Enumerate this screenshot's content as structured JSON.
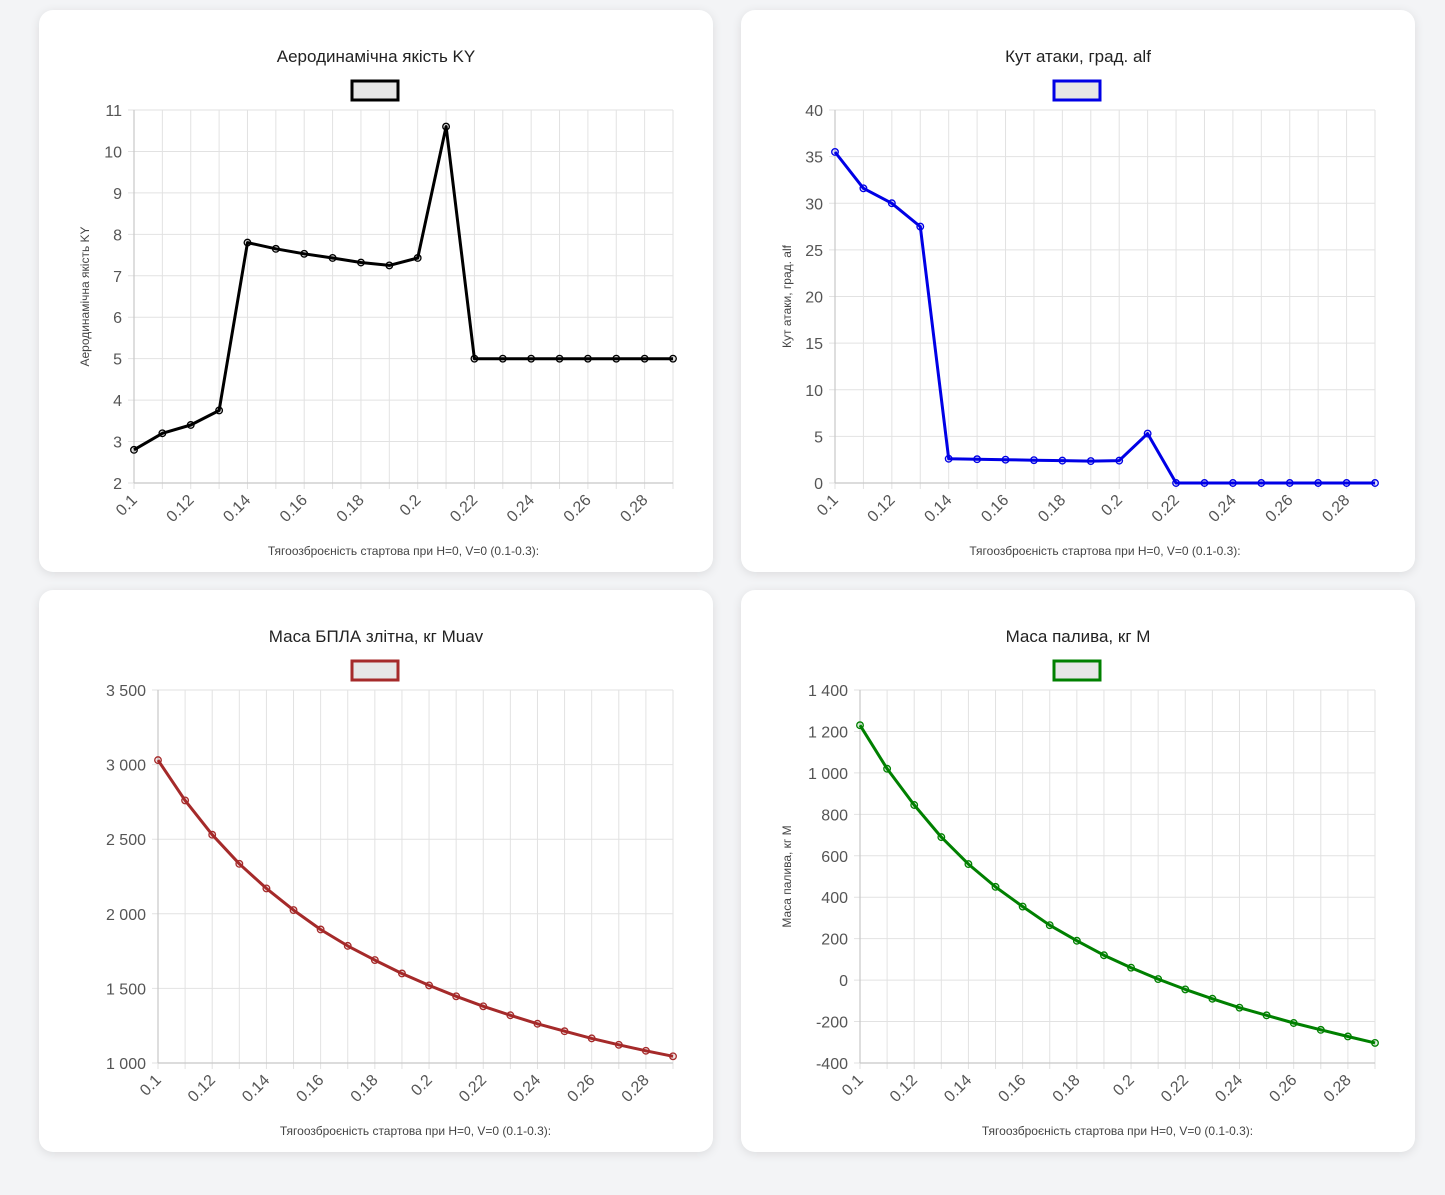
{
  "chart_data": [
    {
      "type": "line",
      "title": "Аеродинамічна якість KY",
      "legend": "",
      "color": "#000000",
      "xlabel": "Тягоозброєність стартова при H=0, V=0 (0.1-0.3):",
      "ylabel": "Аеродинамічна якість KY",
      "ylim": [
        2,
        11
      ],
      "yticks": [
        2,
        3,
        4,
        5,
        6,
        7,
        8,
        9,
        10,
        11
      ],
      "ytick_labels": [
        "2",
        "3",
        "4",
        "5",
        "6",
        "7",
        "8",
        "9",
        "10",
        "11"
      ],
      "x": [
        0.1,
        0.11,
        0.12,
        0.13,
        0.14,
        0.15,
        0.16,
        0.17,
        0.18,
        0.19,
        0.2,
        0.21,
        0.22,
        0.23,
        0.24,
        0.25,
        0.26,
        0.27,
        0.28,
        0.29
      ],
      "values": [
        2.8,
        3.2,
        3.4,
        3.75,
        7.8,
        7.65,
        7.53,
        7.43,
        7.32,
        7.25,
        7.43,
        10.6,
        5.0,
        5.0,
        5.0,
        5.0,
        5.0,
        5.0,
        5.0,
        5.0
      ],
      "xtick_labels": [
        "0.1",
        "0.12",
        "0.14",
        "0.16",
        "0.18",
        "0.2",
        "0.22",
        "0.24",
        "0.26",
        "0.28"
      ]
    },
    {
      "type": "line",
      "title": "Кут атаки, град. alf",
      "legend": "",
      "color": "#0000e6",
      "xlabel": "Тягоозброєність стартова при H=0, V=0 (0.1-0.3):",
      "ylabel": "Кут атаки, град. alf",
      "ylim": [
        0,
        40
      ],
      "yticks": [
        0,
        5,
        10,
        15,
        20,
        25,
        30,
        35,
        40
      ],
      "ytick_labels": [
        "0",
        "5",
        "10",
        "15",
        "20",
        "25",
        "30",
        "35",
        "40"
      ],
      "x": [
        0.1,
        0.11,
        0.12,
        0.13,
        0.14,
        0.15,
        0.16,
        0.17,
        0.18,
        0.19,
        0.2,
        0.21,
        0.22,
        0.23,
        0.24,
        0.25,
        0.26,
        0.27,
        0.28,
        0.29
      ],
      "values": [
        35.5,
        31.6,
        30.0,
        27.5,
        2.6,
        2.55,
        2.5,
        2.45,
        2.4,
        2.35,
        2.4,
        5.3,
        0,
        0,
        0,
        0,
        0,
        0,
        0,
        0
      ],
      "xtick_labels": [
        "0.1",
        "0.12",
        "0.14",
        "0.16",
        "0.18",
        "0.2",
        "0.22",
        "0.24",
        "0.26",
        "0.28"
      ]
    },
    {
      "type": "line",
      "title": "Маса БПЛА злітна, кг Muav",
      "legend": "",
      "color": "#a52a2a",
      "xlabel": "Тягоозброєність стартова при H=0, V=0 (0.1-0.3):",
      "ylabel": "",
      "ylim": [
        1000,
        3500
      ],
      "yticks": [
        1000,
        1500,
        2000,
        2500,
        3000,
        3500
      ],
      "ytick_labels": [
        "1 000",
        "1 500",
        "2 000",
        "2 500",
        "3 000",
        "3 500"
      ],
      "x": [
        0.1,
        0.11,
        0.12,
        0.13,
        0.14,
        0.15,
        0.16,
        0.17,
        0.18,
        0.19,
        0.2,
        0.21,
        0.22,
        0.23,
        0.24,
        0.25,
        0.26,
        0.27,
        0.28,
        0.29
      ],
      "values": [
        3030,
        2760,
        2530,
        2335,
        2170,
        2025,
        1895,
        1785,
        1690,
        1600,
        1520,
        1447,
        1380,
        1320,
        1263,
        1213,
        1165,
        1122,
        1082,
        1045
      ],
      "xtick_labels": [
        "0.1",
        "0.12",
        "0.14",
        "0.16",
        "0.18",
        "0.2",
        "0.22",
        "0.24",
        "0.26",
        "0.28"
      ]
    },
    {
      "type": "line",
      "title": "Маса палива, кг M",
      "legend": "",
      "color": "#008000",
      "xlabel": "Тягоозброєність стартова при H=0, V=0 (0.1-0.3):",
      "ylabel": "Маса палива, кг M",
      "ylim": [
        -400,
        1400
      ],
      "yticks": [
        -400,
        -200,
        0,
        200,
        400,
        600,
        800,
        1000,
        1200,
        1400
      ],
      "ytick_labels": [
        "-400",
        "-200",
        "0",
        "200",
        "400",
        "600",
        "800",
        "1 000",
        "1 200",
        "1 400"
      ],
      "x": [
        0.1,
        0.11,
        0.12,
        0.13,
        0.14,
        0.15,
        0.16,
        0.17,
        0.18,
        0.19,
        0.2,
        0.21,
        0.22,
        0.23,
        0.24,
        0.25,
        0.26,
        0.27,
        0.28,
        0.29
      ],
      "values": [
        1230,
        1020,
        845,
        690,
        560,
        450,
        355,
        265,
        190,
        120,
        60,
        5,
        -45,
        -90,
        -133,
        -170,
        -207,
        -240,
        -272,
        -303
      ],
      "xtick_labels": [
        "0.1",
        "0.12",
        "0.14",
        "0.16",
        "0.18",
        "0.2",
        "0.22",
        "0.24",
        "0.26",
        "0.28"
      ]
    }
  ]
}
